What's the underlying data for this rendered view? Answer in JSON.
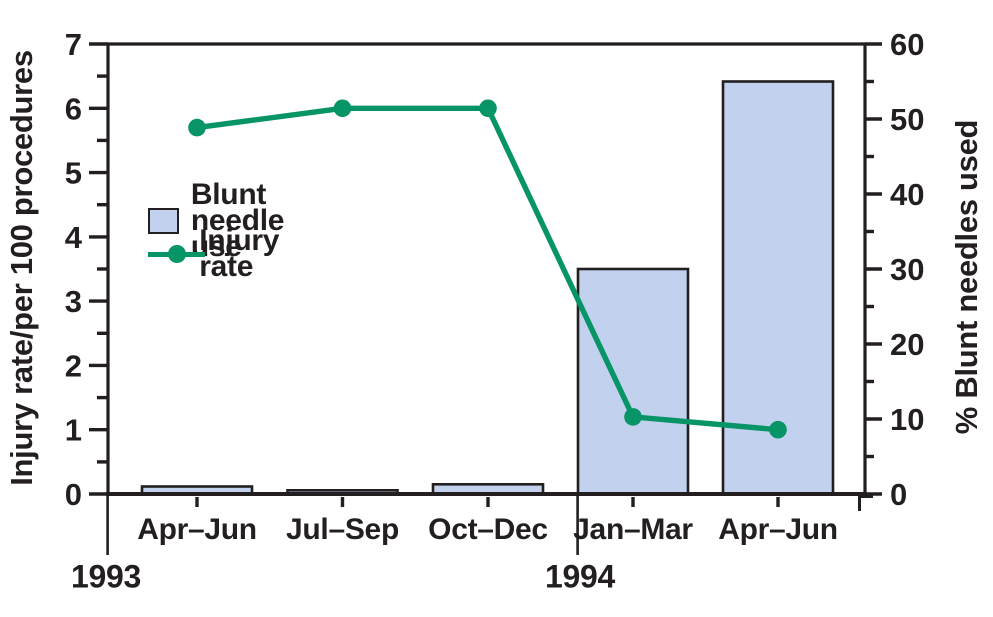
{
  "chart_data": {
    "type": "combo-bar-line",
    "categories": [
      "Apr–Jun",
      "Jul–Sep",
      "Oct–Dec",
      "Jan–Mar",
      "Apr–Jun"
    ],
    "year_groups": [
      {
        "label": "1993",
        "span": [
          0,
          2
        ]
      },
      {
        "label": "1994",
        "span": [
          3,
          4
        ]
      }
    ],
    "series": [
      {
        "name": "Blunt needle use",
        "type": "bar",
        "axis": "right",
        "values": [
          1.0,
          0.5,
          1.3,
          30,
          55
        ]
      },
      {
        "name": "Injury rate",
        "type": "line",
        "axis": "left",
        "values": [
          5.7,
          6.0,
          6.0,
          1.2,
          1.0
        ]
      }
    ],
    "left_axis": {
      "label": "Injury rate/per 100 procedures",
      "min": 0,
      "max": 7,
      "major_ticks": [
        0,
        1,
        2,
        3,
        4,
        5,
        6,
        7
      ],
      "minor_step": 0.5
    },
    "right_axis": {
      "label": "% Blunt needles used",
      "min": 0,
      "max": 60,
      "major_ticks": [
        0,
        10,
        20,
        30,
        40,
        50,
        60
      ],
      "minor_step": 5
    },
    "legend": {
      "position": "upper-left-inside"
    },
    "colors": {
      "bar_fill": "#c2d1ee",
      "bar_border": "#231f20",
      "line": "#079467",
      "text": "#231f20",
      "frame": "#231f20"
    },
    "grid": false
  }
}
